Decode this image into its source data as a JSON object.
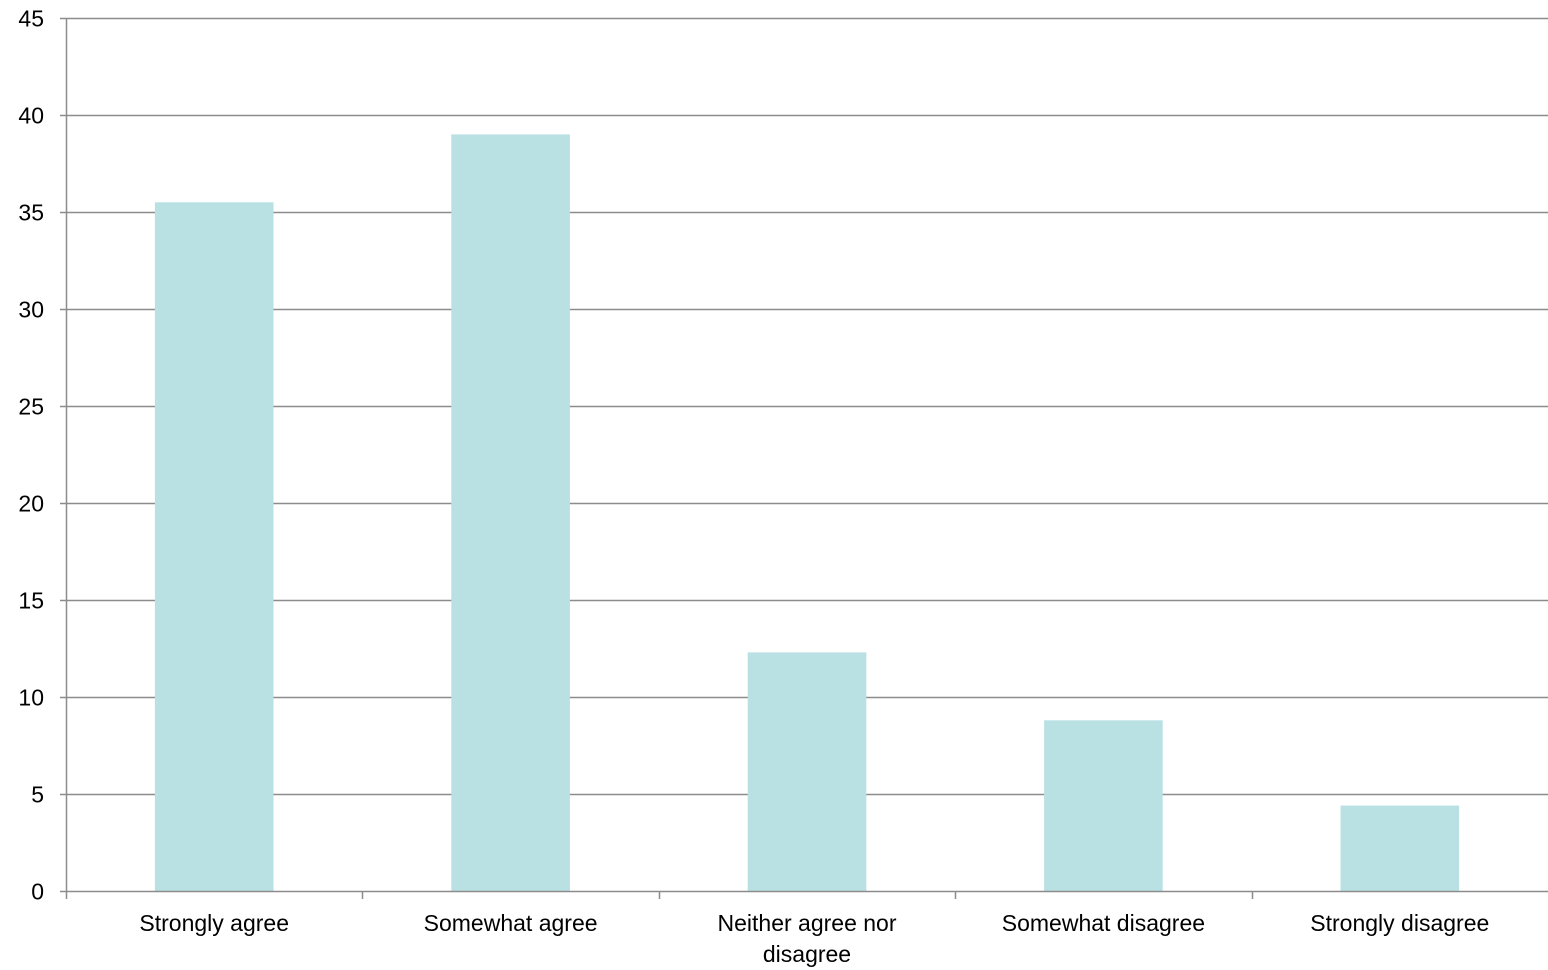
{
  "chart_data": {
    "type": "bar",
    "categories": [
      [
        "Strongly agree"
      ],
      [
        "Somewhat agree"
      ],
      [
        "Neither agree nor",
        "disagree"
      ],
      [
        "Somewhat disagree"
      ],
      [
        "Strongly disagree"
      ]
    ],
    "values": [
      35.5,
      39.0,
      12.3,
      8.8,
      4.4
    ],
    "ylim": [
      0,
      45
    ],
    "yticks": [
      0,
      5,
      10,
      15,
      20,
      25,
      30,
      35,
      40,
      45
    ],
    "grid": true,
    "legend": "none",
    "title": "",
    "xlabel": "",
    "ylabel": "",
    "colors": {
      "bar": "#b9e0e3",
      "grid": "#8c8c8c",
      "axis": "#8c8c8c",
      "text": "#000000"
    }
  }
}
